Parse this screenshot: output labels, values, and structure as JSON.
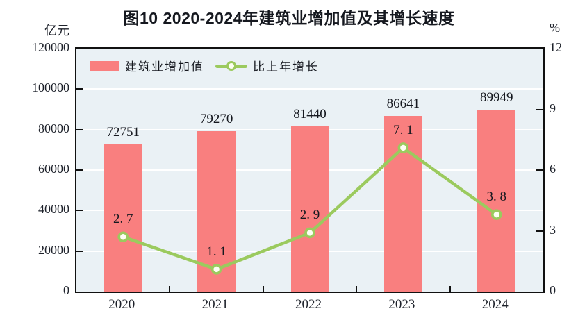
{
  "title": "图10  2020-2024年建筑业增加值及其增长速度",
  "legend": {
    "bar_label": "建筑业增加值",
    "line_label": "比上年增长"
  },
  "axes": {
    "left_unit": "亿元",
    "right_unit": "%"
  },
  "colors": {
    "bar": "#F97F7F",
    "line": "#9BCA5E",
    "marker_fill": "#FDFFF4",
    "plot_bg": "#EAF1F5",
    "grid": "#FFFFFF",
    "axis": "#111111"
  },
  "chart_data": {
    "type": "bar",
    "subtype": "bar+line combo",
    "title": "图10  2020-2024年建筑业增加值及其增长速度",
    "categories": [
      "2020",
      "2021",
      "2022",
      "2023",
      "2024"
    ],
    "series": [
      {
        "name": "建筑业增加值",
        "type": "bar",
        "axis": "left",
        "values": [
          72751,
          79270,
          81440,
          86641,
          89949
        ],
        "labels": [
          "72751",
          "79270",
          "81440",
          "86641",
          "89949"
        ]
      },
      {
        "name": "比上年增长",
        "type": "line",
        "axis": "right",
        "values": [
          2.7,
          1.1,
          2.9,
          7.1,
          3.8
        ],
        "labels": [
          "2. 7",
          "1. 1",
          "2. 9",
          "7. 1",
          "3. 8"
        ]
      }
    ],
    "left_axis": {
      "label": "亿元",
      "min": 0,
      "max": 120000,
      "step": 20000,
      "ticks": [
        "0",
        "20000",
        "40000",
        "60000",
        "80000",
        "100000",
        "120000"
      ]
    },
    "right_axis": {
      "label": "%",
      "min": 0,
      "max": 12,
      "step": 3,
      "ticks": [
        "0",
        "3",
        "6",
        "9",
        "12"
      ]
    },
    "grid": true,
    "legend_position": "top-left-inside"
  }
}
